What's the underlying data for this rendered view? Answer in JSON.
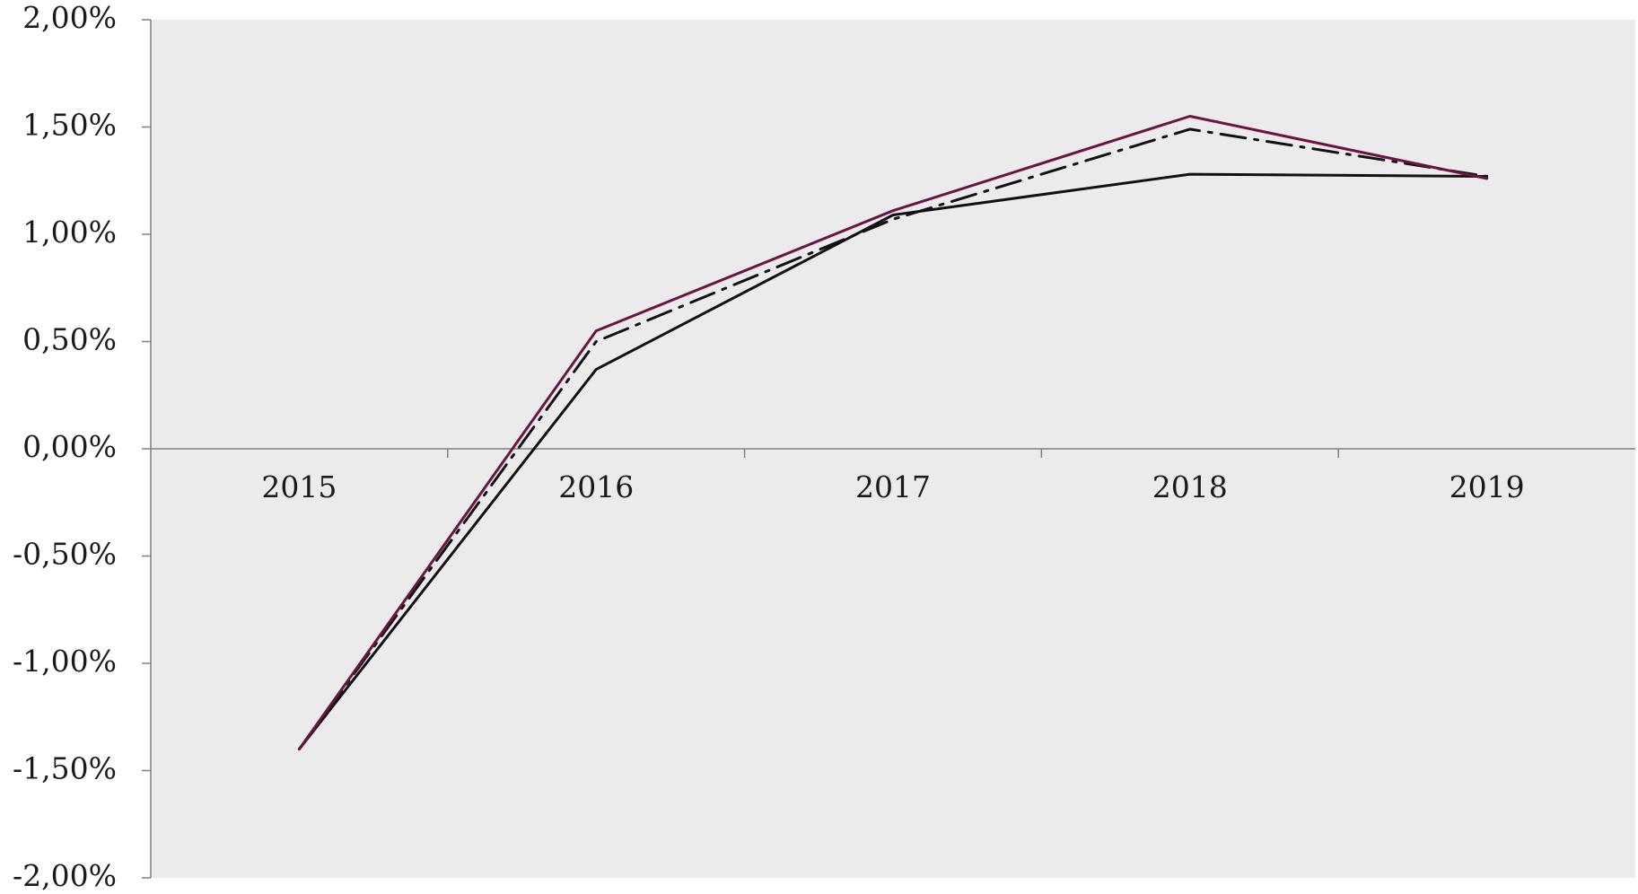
{
  "chart_data": {
    "type": "line",
    "title": "",
    "xlabel": "",
    "ylabel": "",
    "categories": [
      "2015",
      "2016",
      "2017",
      "2018",
      "2019"
    ],
    "ylim": [
      -2.0,
      2.0
    ],
    "y_ticks": [
      2.0,
      1.5,
      1.0,
      0.5,
      0.0,
      -0.5,
      -1.0,
      -1.5,
      -2.0
    ],
    "y_tick_labels": [
      "2,00%",
      "1,50%",
      "1,00%",
      "0,50%",
      "0,00%",
      "-0,50%",
      "-1,00%",
      "-1,50%",
      "-2,00%"
    ],
    "grid": false,
    "legend": "none",
    "plot_background": "#ebebeb",
    "series": [
      {
        "values": [
          -1.4,
          0.37,
          1.09,
          1.28,
          1.27
        ],
        "color": "#111111",
        "style": "solid"
      },
      {
        "values": [
          -1.4,
          0.5,
          1.07,
          1.49,
          1.27
        ],
        "color": "#111111",
        "style": "dash-dot"
      },
      {
        "values": [
          -1.4,
          0.55,
          1.11,
          1.55,
          1.26
        ],
        "color": "#6b1441",
        "style": "solid"
      }
    ]
  }
}
